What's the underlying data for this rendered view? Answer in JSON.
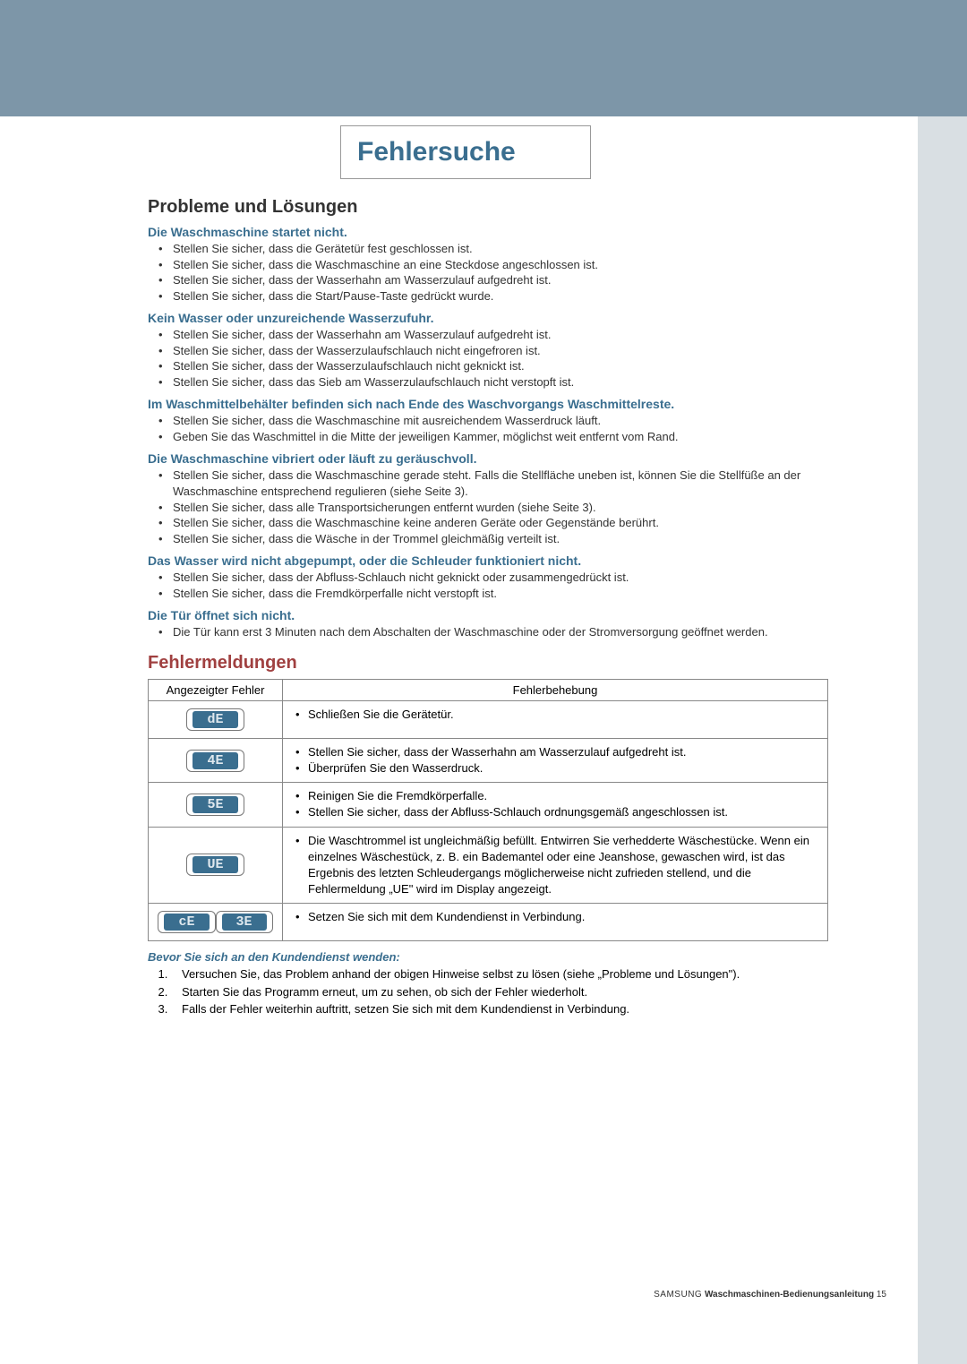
{
  "colors": {
    "topbar": "#7d96a8",
    "sidebar": "#d9dfe3",
    "accent": "#3a6e8f",
    "heading_red": "#a04040",
    "text": "#333333",
    "border": "#888888",
    "badge_bg": "#3a6e8f",
    "badge_fg": "#dfe8ee"
  },
  "typography": {
    "title_fontsize": 30,
    "h2_fontsize": 20,
    "h3_fontsize": 14,
    "body_fontsize": 13,
    "footer_fontsize": 10
  },
  "page_title": "Fehlersuche",
  "section1": {
    "title": "Probleme und Lösungen",
    "groups": [
      {
        "heading": "Die Waschmaschine startet nicht.",
        "items": [
          "Stellen Sie sicher, dass die Gerätetür fest geschlossen ist.",
          "Stellen Sie sicher, dass die Waschmaschine an eine Steckdose angeschlossen ist.",
          "Stellen Sie sicher, dass der Wasserhahn am Wasserzulauf aufgedreht ist.",
          "Stellen Sie sicher, dass die Start/Pause-Taste gedrückt wurde."
        ]
      },
      {
        "heading": "Kein Wasser oder unzureichende Wasserzufuhr.",
        "items": [
          "Stellen Sie sicher, dass der Wasserhahn am Wasserzulauf aufgedreht ist.",
          "Stellen Sie sicher, dass der Wasserzulaufschlauch nicht eingefroren ist.",
          "Stellen Sie sicher, dass der Wasserzulaufschlauch nicht geknickt ist.",
          "Stellen Sie sicher, dass das Sieb am Wasserzulaufschlauch nicht verstopft ist."
        ]
      },
      {
        "heading": "Im Waschmittelbehälter befinden sich nach Ende des Waschvorgangs Waschmittelreste.",
        "items": [
          "Stellen Sie sicher, dass die Waschmaschine mit ausreichendem Wasserdruck läuft.",
          "Geben Sie das Waschmittel in die Mitte der jeweiligen Kammer, möglichst weit entfernt vom Rand."
        ]
      },
      {
        "heading": "Die Waschmaschine vibriert oder läuft zu geräuschvoll.",
        "items": [
          "Stellen Sie sicher, dass die Waschmaschine gerade steht.  Falls die Stellfläche uneben ist, können Sie die Stellfüße an der Waschmaschine entsprechend regulieren (siehe Seite 3).",
          "Stellen Sie sicher, dass alle Transportsicherungen entfernt wurden (siehe Seite 3).",
          "Stellen Sie sicher, dass die Waschmaschine keine anderen Geräte oder Gegenstände berührt.",
          "Stellen Sie sicher, dass die Wäsche in der Trommel gleichmäßig verteilt ist."
        ]
      },
      {
        "heading": "Das Wasser wird nicht abgepumpt, oder die Schleuder funktioniert nicht.",
        "items": [
          "Stellen Sie sicher, dass der Abfluss-Schlauch nicht geknickt oder zusammengedrückt ist.",
          "Stellen Sie sicher, dass die Fremdkörperfalle nicht verstopft ist."
        ]
      },
      {
        "heading": "Die Tür öffnet sich nicht.",
        "items": [
          "Die Tür kann erst 3 Minuten nach dem Abschalten der Waschmaschine oder der Stromversorgung geöffnet werden."
        ]
      }
    ]
  },
  "section2": {
    "title": "Fehlermeldungen",
    "col1": "Angezeigter Fehler",
    "col2": "Fehlerbehebung",
    "rows": [
      {
        "codes": [
          "dE"
        ],
        "fix": [
          "Schließen Sie die Gerätetür."
        ]
      },
      {
        "codes": [
          "4E"
        ],
        "fix": [
          "Stellen Sie sicher, dass der Wasserhahn am Wasserzulauf aufgedreht ist.",
          "Überprüfen Sie den Wasserdruck."
        ]
      },
      {
        "codes": [
          "5E"
        ],
        "fix": [
          "Reinigen Sie die Fremdkörperfalle.",
          "Stellen Sie sicher, dass der Abfluss-Schlauch ordnungsgemäß angeschlossen ist."
        ]
      },
      {
        "codes": [
          "UE"
        ],
        "fix": [
          "Die Waschtrommel ist ungleichmäßig befüllt. Entwirren Sie verhedderte Wäschestücke.  Wenn ein einzelnes Wäschestück, z. B. ein Bademantel oder eine Jeanshose, gewaschen wird, ist das Ergebnis des letzten Schleudergangs möglicherweise nicht zufrieden stellend, und die Fehlermeldung „UE\" wird im Display angezeigt."
        ]
      },
      {
        "codes": [
          "cE",
          "3E"
        ],
        "fix": [
          "Setzen Sie sich mit dem Kundendienst in Verbindung."
        ]
      }
    ]
  },
  "before_service": {
    "title": "Bevor Sie sich an den Kundendienst wenden:",
    "steps": [
      "Versuchen Sie, das Problem anhand der obigen Hinweise selbst zu lösen (siehe „Probleme und Lösungen\").",
      "Starten Sie das Programm erneut, um zu sehen, ob sich der Fehler wiederholt.",
      "Falls der Fehler weiterhin auftritt, setzen Sie sich mit dem Kundendienst in Verbindung."
    ]
  },
  "footer": {
    "brand": "SAMSUNG",
    "doc": "Waschmaschinen-Bedienungsanleitung",
    "page": "15"
  }
}
